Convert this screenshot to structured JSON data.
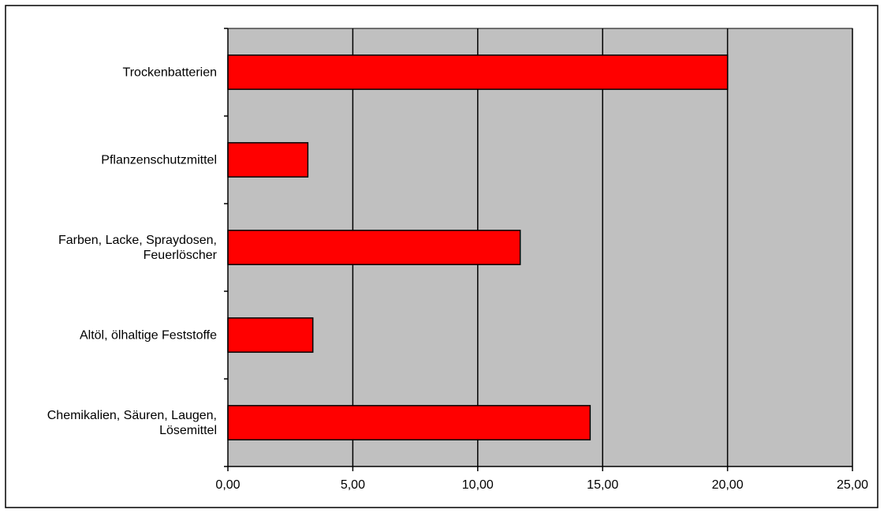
{
  "chart_data": {
    "type": "bar",
    "orientation": "horizontal",
    "categories": [
      "Trockenbatterien",
      "Pflanzenschutzmittel",
      "Farben, Lacke, Spraydosen, Feuerlöscher",
      "Altöl, ölhaltige Feststoffe",
      "Chemikalien, Säuren, Laugen, Lösemittel"
    ],
    "category_label_lines": [
      [
        "Trockenbatterien"
      ],
      [
        "Pflanzenschutzmittel"
      ],
      [
        "Farben, Lacke, Spraydosen,",
        "Feuerlöscher"
      ],
      [
        "Altöl, ölhaltige Feststoffe"
      ],
      [
        "Chemikalien, Säuren, Laugen,",
        "Lösemittel"
      ]
    ],
    "values": [
      20.0,
      3.2,
      11.7,
      3.4,
      14.5
    ],
    "xlim": [
      0,
      25
    ],
    "x_ticks": [
      0,
      5,
      10,
      15,
      20,
      25
    ],
    "x_tick_labels": [
      "0,00",
      "5,00",
      "10,00",
      "15,00",
      "20,00",
      "25,00"
    ],
    "title": "",
    "xlabel": "",
    "ylabel": "",
    "grid": true,
    "legend": "none",
    "colors": {
      "bar_fill": "#ff0000",
      "bar_stroke": "#000000",
      "plot_background": "#c0c0c0",
      "gridline": "#000000",
      "frame": "#000000"
    }
  }
}
